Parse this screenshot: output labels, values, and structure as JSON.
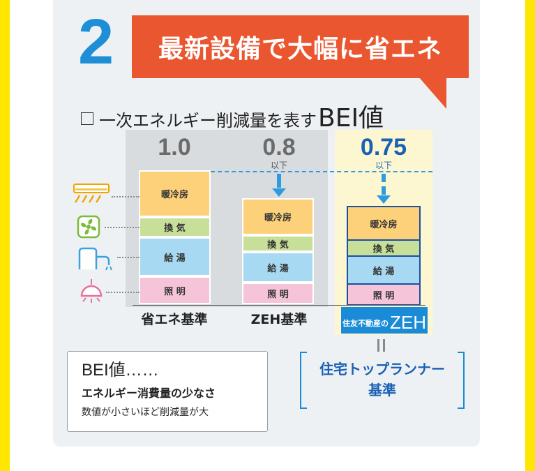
{
  "step_number": "2",
  "banner_text": "最新設備で大幅に省エネ",
  "heading": {
    "main": "一次エネルギー削減量を表す",
    "big": "BEI値"
  },
  "columns": [
    {
      "value": "1.0",
      "sub": "",
      "label": "省エネ基準"
    },
    {
      "value": "0.8",
      "sub": "以下",
      "label": "ZEH基準"
    },
    {
      "value": "0.75",
      "sub": "以下",
      "label": ""
    }
  ],
  "segments": {
    "heat": "暖冷房",
    "vent": "換 気",
    "water": "給 湯",
    "light": "照 明"
  },
  "zeh_badge": {
    "small": "住友不動産の",
    "big": "ZEH"
  },
  "top_runner": {
    "line1": "住宅トップランナー",
    "line2": "基準"
  },
  "info": {
    "title": "BEI値……",
    "line1": "エネルギー消費量の少なさ",
    "line2": "数値が小さいほど削減量が大"
  },
  "colors": {
    "accent_blue": "#1e8fd6",
    "banner_orange": "#e9562f",
    "heat": "#fcd17a",
    "vent": "#c7df98",
    "water": "#a8d9f2",
    "light": "#f6c4d8",
    "highlight_bg": "#fdf7d1",
    "side_yellow": "#ffe600"
  },
  "icons": [
    "air-conditioner-icon",
    "ventilation-fan-icon",
    "water-heater-icon",
    "ceiling-light-icon"
  ]
}
